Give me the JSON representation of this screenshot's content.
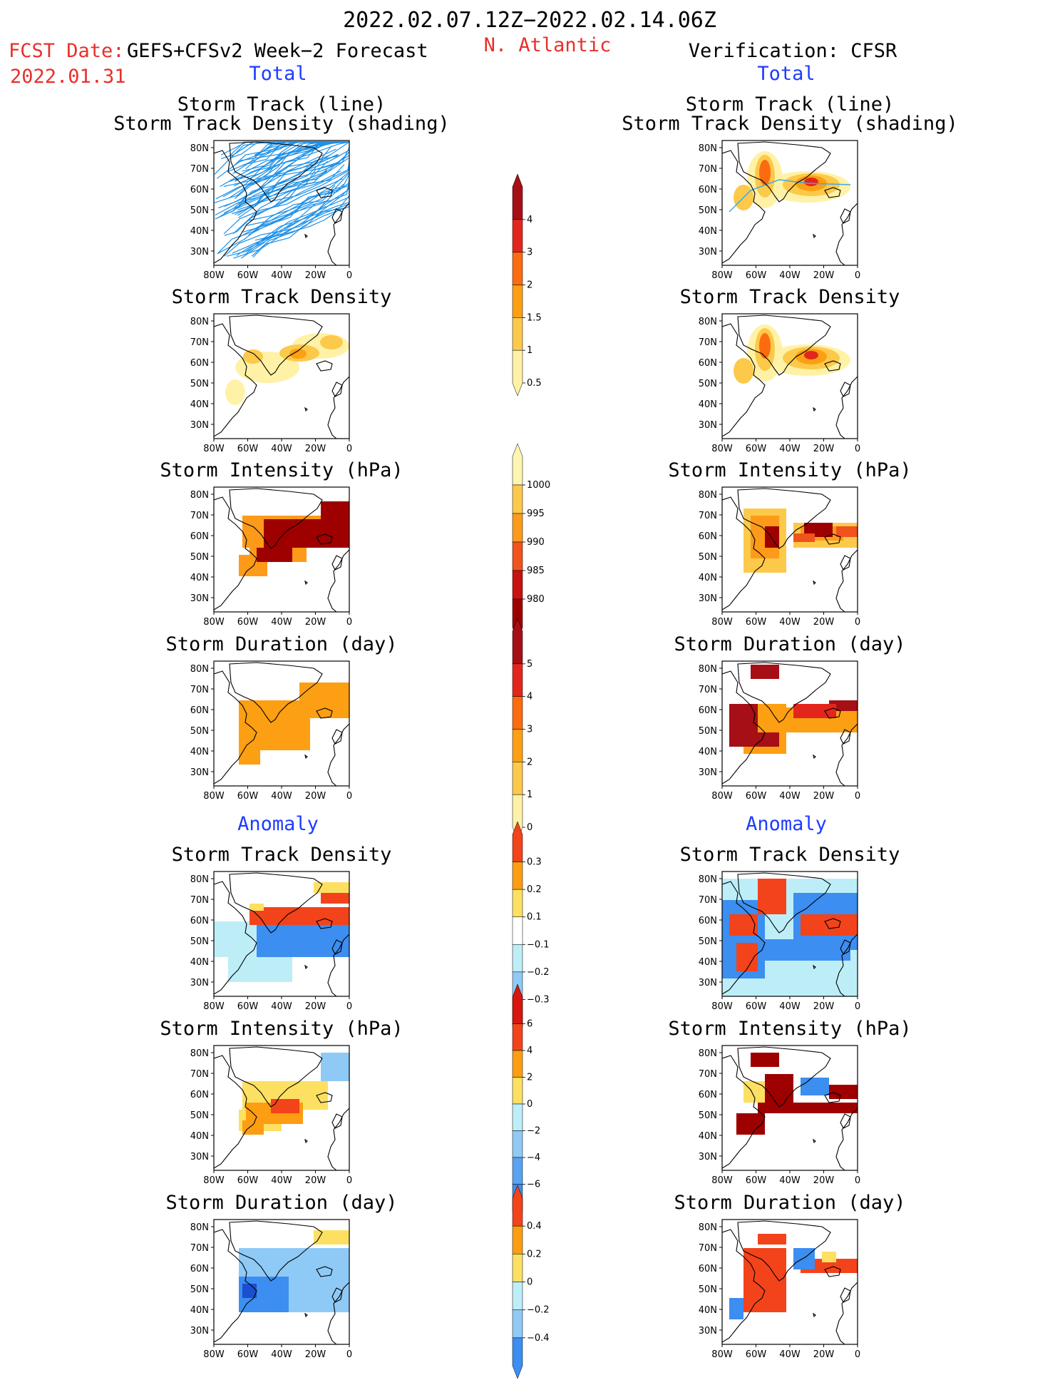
{
  "header": {
    "period": "2022.02.07.12Z−2022.02.14.06Z",
    "region": "N. Atlantic",
    "fcst_date_label": "FCST Date:",
    "fcst_date_value": "2022.01.31",
    "model": "GEFS+CFSv2 Week−2 Forecast",
    "verification": "Verification: CFSR"
  },
  "sections": {
    "total": "Total",
    "anomaly": "Anomaly"
  },
  "panel_titles": {
    "track_line": "Storm Track (line)",
    "track_shading": "Storm Track Density (shading)",
    "density": "Storm Track Density",
    "intensity": "Storm Intensity (hPa)",
    "duration": "Storm Duration (day)"
  },
  "axes": {
    "lat_ticks": [
      "80N",
      "70N",
      "60N",
      "50N",
      "40N",
      "30N"
    ],
    "lon_ticks": [
      "80W",
      "60W",
      "40W",
      "20W",
      "0"
    ]
  },
  "colorbars": [
    {
      "id": "density-total",
      "labels": [
        "4",
        "3",
        "2",
        "1.5",
        "1",
        "0.5"
      ],
      "colors": [
        "#a50f15",
        "#e3261c",
        "#fd6b0f",
        "#fd9f12",
        "#fdc94a",
        "#fff2a6"
      ]
    },
    {
      "id": "intensity-total",
      "labels": [
        "1000",
        "995",
        "990",
        "985",
        "980"
      ],
      "colors": [
        "#fff5b0",
        "#fdc94a",
        "#fd9a1a",
        "#f0531c",
        "#c8120f",
        "#9e0000"
      ]
    },
    {
      "id": "duration-total",
      "labels": [
        "5",
        "4",
        "3",
        "2",
        "1",
        "0"
      ],
      "colors": [
        "#a50f15",
        "#e3261c",
        "#fd6b0f",
        "#fd9f12",
        "#fdc94a",
        "#fff2a6"
      ]
    },
    {
      "id": "density-anom",
      "labels": [
        "0.3",
        "0.2",
        "0.1",
        "−0.1",
        "−0.2",
        "−0.3"
      ],
      "colors": [
        "#f3431b",
        "#fd9d12",
        "#fde062",
        "#ffffff",
        "#bdeef8",
        "#8fcaf6",
        "#3c8ef0"
      ]
    },
    {
      "id": "intensity-anom",
      "labels": [
        "6",
        "4",
        "2",
        "0",
        "−2",
        "−4",
        "−6"
      ],
      "colors": [
        "#d8150f",
        "#f3431b",
        "#fd9d12",
        "#fde062",
        "#bdeef8",
        "#8fcaf6",
        "#5aa3f2",
        "#3c8ef0"
      ]
    },
    {
      "id": "duration-anom",
      "labels": [
        "0.4",
        "0.2",
        "0",
        "−0.2",
        "−0.4"
      ],
      "colors": [
        "#f3431b",
        "#fd9d12",
        "#fde062",
        "#bdeef8",
        "#8fcaf6",
        "#3c8ef0"
      ]
    }
  ]
}
